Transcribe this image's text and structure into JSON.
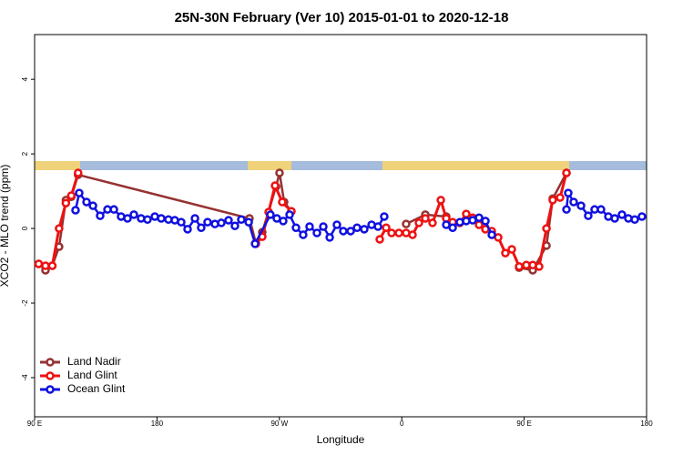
{
  "chart_data": {
    "type": "line",
    "title": "25N-30N February (Ver 10)   2015-01-01 to 2020-12-18",
    "x_label": "Longitude",
    "y_label": "XCO2 - MLO trend (ppm)",
    "xlim": [
      90,
      540
    ],
    "ylim": [
      -5.05,
      5.2
    ],
    "xticks": [
      {
        "value": 90,
        "label": "90 E"
      },
      180,
      {
        "value": 270,
        "label": "90 W"
      },
      0,
      {
        "value": 450,
        "label": "90 E"
      },
      {
        "value": 540,
        "label": "180"
      }
    ],
    "yticks": [
      -4,
      -2,
      0,
      2,
      4
    ],
    "legend": "bottom-left",
    "series": [
      {
        "name": "Land Nadir",
        "color": "#963232",
        "x": [
          93,
          98,
          103,
          108,
          113,
          117,
          122,
          248,
          252.7,
          257.4,
          267.5,
          270.1,
          273.5,
          278.8,
          352.5,
          363.2,
          377.3,
          392.7,
          436.2,
          446.3,
          456.3,
          466.4,
          471,
          481.1
        ],
        "values": [
          -0.95,
          -1.12,
          -1.0,
          -0.49,
          0.76,
          0.85,
          1.44,
          0.27,
          -0.39,
          -0.1,
          1.12,
          1.49,
          0.71,
          0.46,
          null,
          0.12,
          0.37,
          0.32,
          null,
          -1.05,
          -1.12,
          -0.46,
          0.8,
          1.49
        ]
      },
      {
        "name": "Land Glint",
        "color": "#ee1111",
        "x": [
          93,
          98,
          103,
          108,
          113,
          117,
          122,
          200,
          252.7,
          257.4,
          262.1,
          266.8,
          272.1,
          278.8,
          310,
          343.8,
          348.5,
          352.5,
          357.9,
          363.2,
          367.9,
          372.6,
          377.3,
          382.6,
          388.7,
          392.7,
          397.4,
          402.7,
          407.4,
          412.1,
          416.8,
          421.5,
          426.2,
          430.9,
          436.2,
          440.9,
          446.3,
          451.6,
          456.3,
          461,
          466.4,
          471,
          476.4,
          481.1
        ],
        "values": [
          -0.95,
          -1.0,
          -1.0,
          0,
          0.68,
          0.88,
          1.49,
          null,
          -0.41,
          -0.22,
          0.44,
          1.15,
          0.71,
          0.46,
          null,
          -0.29,
          0.02,
          -0.12,
          -0.12,
          -0.12,
          -0.17,
          0.15,
          0.27,
          0.15,
          0.76,
          0.27,
          0.17,
          0.15,
          0.39,
          0.29,
          0.1,
          -0.02,
          -0.07,
          -0.24,
          -0.66,
          -0.56,
          -1.02,
          -0.98,
          -0.98,
          -1.02,
          0,
          0.76,
          0.83,
          1.49
        ]
      },
      {
        "name": "Ocean Glint",
        "color": "#1010e0",
        "x": [
          120.1,
          122.8,
          128.2,
          132.9,
          138.2,
          143.6,
          148.3,
          153.6,
          158.3,
          163,
          168.3,
          173,
          178.4,
          183.1,
          188.4,
          193.1,
          197.8,
          202.5,
          207.9,
          212.5,
          217.2,
          222.6,
          227.3,
          232.6,
          237.3,
          242,
          247.4,
          252.1,
          263.4,
          268.1,
          272.8,
          277.5,
          282.2,
          287.5,
          292.2,
          297.6,
          302.3,
          307,
          312.3,
          317,
          322.4,
          327.1,
          332.4,
          337.8,
          342.5,
          347.1,
          370,
          392.7,
          397.4,
          402.7,
          407.4,
          412.1,
          416.8,
          421.5,
          426.2,
          450,
          481.1,
          482.4,
          486.4,
          491.8,
          497.1,
          501.8,
          506.5,
          511.9,
          516.6,
          521.9,
          526.6,
          531.3,
          536.6
        ],
        "values": [
          0.49,
          0.95,
          0.71,
          0.61,
          0.34,
          0.51,
          0.51,
          0.32,
          0.27,
          0.37,
          0.27,
          0.24,
          0.32,
          0.27,
          0.24,
          0.22,
          0.17,
          -0.02,
          0.27,
          0.02,
          0.17,
          0.12,
          0.15,
          0.22,
          0.07,
          0.24,
          0.17,
          -0.41,
          0.37,
          0.27,
          0.2,
          0.37,
          0.02,
          -0.17,
          0.05,
          -0.12,
          0.05,
          -0.24,
          0.1,
          -0.07,
          -0.07,
          0.02,
          -0.02,
          0.1,
          0.05,
          0.32,
          null,
          0.1,
          0.02,
          0.17,
          0.2,
          0.22,
          0.29,
          0.2,
          -0.17,
          null,
          0.51,
          0.95,
          0.71,
          0.61,
          0.34,
          0.51,
          0.51,
          0.32,
          0.27,
          0.37,
          0.27,
          0.24,
          0.32
        ]
      }
    ]
  }
}
